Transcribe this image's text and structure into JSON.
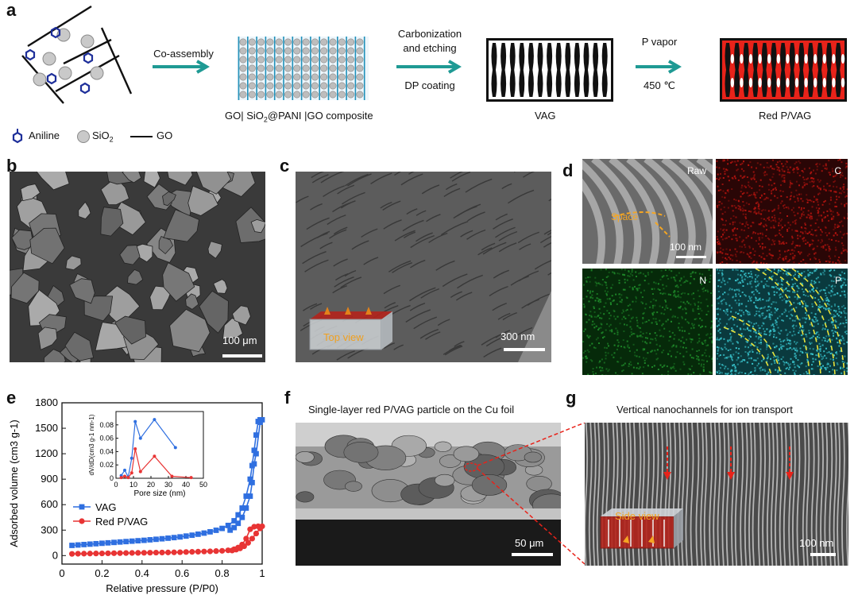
{
  "panel_a": {
    "label": "a",
    "steps": {
      "co_assembly": "Co-assembly",
      "carbonization_line1": "Carbonization",
      "carbonization_line2": "and etching",
      "dp_coating": "DP coating",
      "p_vapor": "P vapor",
      "temperature": "450 ℃"
    },
    "captions": {
      "composite_pre": "GO| SiO",
      "composite_sub": "2",
      "composite_post": "@PANI |GO composite",
      "vag": "VAG",
      "red_p_vag": "Red P/VAG"
    },
    "legend": {
      "aniline": "Aniline",
      "sio2_pre": "SiO",
      "sio2_sub": "2",
      "go": "GO"
    }
  },
  "panel_b": {
    "label": "b",
    "scale_bar": "100 μm"
  },
  "panel_c": {
    "label": "c",
    "scale_bar": "300 nm",
    "inset": "Top view"
  },
  "panel_d": {
    "label": "d",
    "maps": [
      "Raw",
      "C",
      "N",
      "P"
    ],
    "annotation": "Space",
    "scale_bar": "100 nm",
    "colors": {
      "C": "#b3140f",
      "N": "#1f8a2a",
      "P": "#38c3cc"
    }
  },
  "panel_e": {
    "label": "e"
  },
  "panel_f": {
    "label": "f",
    "title": "Single-layer red P/VAG particle on the Cu foil",
    "scale_bar": "50 μm"
  },
  "panel_g": {
    "label": "g",
    "title": "Vertical nanochannels for ion transport",
    "inset": "Side view",
    "scale_bar": "100 nm"
  },
  "chart_data": [
    {
      "type": "line",
      "xlabel": "Relative pressure (P/P0)",
      "ylabel": "Adsorbed volume (cm3 g-1)",
      "xlim": [
        0,
        1.0
      ],
      "ylim": [
        -100,
        1800
      ],
      "xticks": [
        "0",
        "0.2",
        "0.4",
        "0.6",
        "0.8",
        "1"
      ],
      "yticks": [
        "0",
        "300",
        "600",
        "900",
        "1200",
        "1500",
        "1800"
      ],
      "legend_position": "left",
      "series": [
        {
          "name": "VAG",
          "color": "#2f6fe0",
          "marker": "square",
          "x": [
            0.05,
            0.08,
            0.11,
            0.14,
            0.17,
            0.2,
            0.23,
            0.26,
            0.29,
            0.32,
            0.35,
            0.38,
            0.41,
            0.44,
            0.47,
            0.5,
            0.53,
            0.56,
            0.59,
            0.62,
            0.65,
            0.68,
            0.71,
            0.74,
            0.77,
            0.8,
            0.83,
            0.86,
            0.88,
            0.9,
            0.92,
            0.94,
            0.95,
            0.96,
            0.97,
            0.98,
            0.99,
            1.0,
            0.99,
            0.97,
            0.96,
            0.95,
            0.94,
            0.92,
            0.9,
            0.88,
            0.86,
            0.84
          ],
          "y": [
            120,
            125,
            130,
            135,
            140,
            145,
            150,
            155,
            160,
            165,
            170,
            175,
            180,
            186,
            192,
            198,
            205,
            212,
            220,
            230,
            240,
            252,
            265,
            280,
            298,
            320,
            355,
            410,
            480,
            560,
            700,
            900,
            1060,
            1240,
            1420,
            1580,
            1600,
            1600,
            1570,
            1200,
            1080,
            860,
            700,
            560,
            450,
            380,
            330,
            300
          ]
        },
        {
          "name": "Red P/VAG",
          "color": "#e83434",
          "marker": "circle",
          "x": [
            0.05,
            0.08,
            0.11,
            0.14,
            0.17,
            0.2,
            0.23,
            0.26,
            0.29,
            0.32,
            0.35,
            0.38,
            0.41,
            0.44,
            0.47,
            0.5,
            0.53,
            0.56,
            0.59,
            0.62,
            0.65,
            0.68,
            0.71,
            0.74,
            0.77,
            0.8,
            0.83,
            0.86,
            0.88,
            0.9,
            0.92,
            0.94,
            0.96,
            0.98,
            1.0,
            0.99,
            0.97,
            0.95,
            0.93,
            0.91,
            0.89,
            0.87,
            0.85
          ],
          "y": [
            20,
            22,
            23,
            24,
            25,
            26,
            27,
            28,
            29,
            30,
            31,
            32,
            33,
            34,
            35,
            36,
            37,
            38,
            40,
            42,
            44,
            46,
            48,
            50,
            53,
            56,
            62,
            75,
            95,
            130,
            200,
            310,
            340,
            345,
            345,
            320,
            260,
            200,
            150,
            110,
            85,
            70,
            60
          ]
        }
      ]
    },
    {
      "type": "line",
      "xlabel": "Pore size (nm)",
      "ylabel": "dV/dD(cm3 g-1 nm-1)",
      "xlim": [
        0,
        50
      ],
      "ylim": [
        0,
        0.1
      ],
      "xticks": [
        "0",
        "10",
        "20",
        "30",
        "40",
        "50"
      ],
      "yticks": [
        "0",
        "0.02",
        "0.04",
        "0.06",
        "0.08"
      ],
      "series": [
        {
          "name": "VAG",
          "color": "#2f6fe0",
          "x": [
            3,
            5,
            7,
            9,
            11,
            14,
            22,
            34
          ],
          "y": [
            0.004,
            0.012,
            0.002,
            0.03,
            0.085,
            0.06,
            0.088,
            0.046
          ]
        },
        {
          "name": "Red P/VAG",
          "color": "#e83434",
          "x": [
            3,
            5,
            7,
            9,
            11,
            14,
            22,
            32,
            43
          ],
          "y": [
            0.001,
            0.003,
            0.001,
            0.008,
            0.044,
            0.01,
            0.033,
            0.003,
            0.001
          ]
        }
      ]
    }
  ]
}
